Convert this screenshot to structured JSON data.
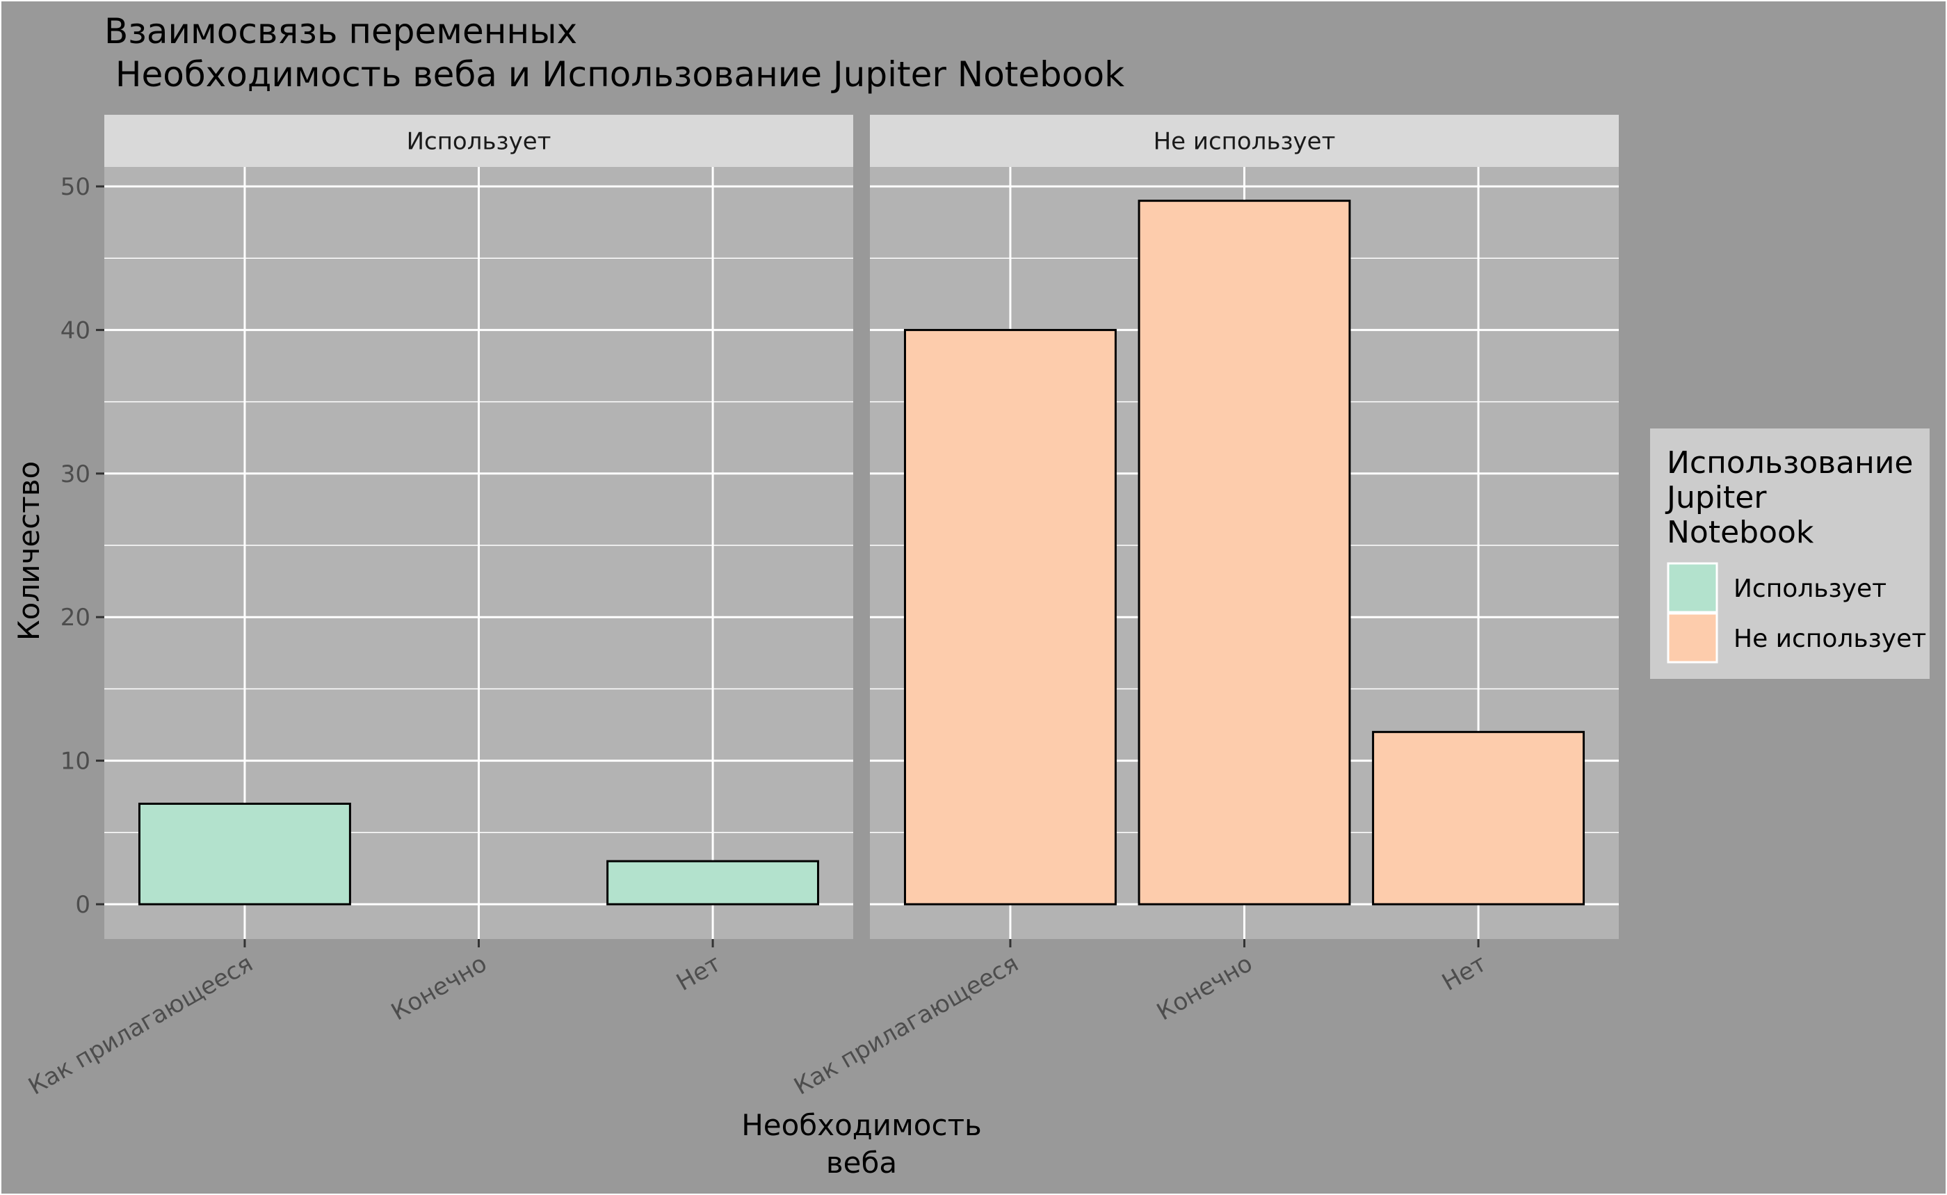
{
  "chart_data": {
    "type": "bar",
    "title_lines": [
      "Взаимосвязь переменных",
      " Необходимость веба и Использование Jupiter Notebook"
    ],
    "ylabel": "Количество",
    "xlabel_lines": [
      "Необходимость",
      "веба"
    ],
    "categories": [
      "Как прилагающееся",
      "Конечно",
      "Нет"
    ],
    "ylim": [
      0,
      52.5
    ],
    "yticks": [
      0,
      10,
      20,
      30,
      40,
      50
    ],
    "facets": [
      {
        "label": "Использует",
        "series": "Использует",
        "values": [
          7,
          null,
          3
        ]
      },
      {
        "label": "Не использует",
        "series": "Не использует",
        "values": [
          40,
          49,
          12
        ]
      }
    ],
    "legend": {
      "title_lines": [
        "Использование",
        "Jupiter",
        "Notebook"
      ],
      "position": "right",
      "entries": [
        {
          "label": "Использует",
          "color": "#b3e2cd"
        },
        {
          "label": "Не использует",
          "color": "#fdccac"
        }
      ]
    },
    "grid": true,
    "colors": {
      "background": "#999999",
      "panel": "#b3b3b3",
      "strip": "#d9d9d9",
      "legend_box": "#cccccc",
      "grid": "#ffffff",
      "bar_outline": "#000000"
    }
  }
}
